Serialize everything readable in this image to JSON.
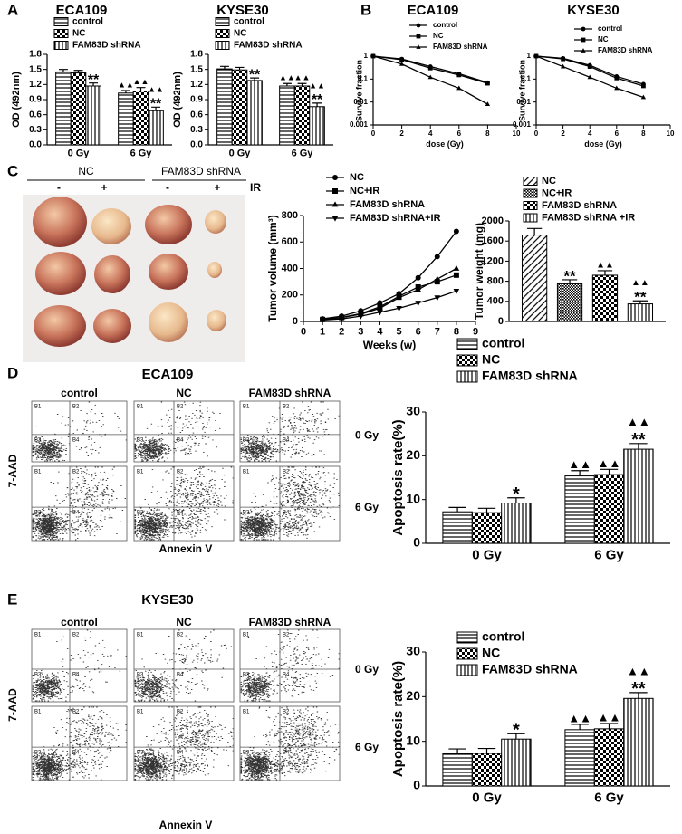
{
  "panel_labels": [
    "A",
    "B",
    "C",
    "D",
    "E"
  ],
  "tumor_photo": {
    "groups": [
      "NC",
      "FAM83D shRNA"
    ],
    "ir_signs": [
      "-",
      "+",
      "-",
      "+"
    ],
    "ir_label": "IR"
  },
  "flow_panels": [
    {
      "title": "ECA109",
      "columns": [
        "control",
        "NC",
        "FAM83D shRNA"
      ],
      "rows": [
        "0 Gy",
        "6 Gy"
      ],
      "y_label": "7-AAD",
      "x_label": "Annexin V",
      "quadrants": [
        "B1",
        "B2",
        "B3",
        "B4"
      ]
    },
    {
      "title": "KYSE30",
      "columns": [
        "control",
        "NC",
        "FAM83D shRNA"
      ],
      "rows": [
        "0 Gy",
        "6 Gy"
      ],
      "y_label": "7-AAD",
      "x_label": "Annexin V",
      "quadrants": [
        "B1",
        "B2",
        "B3",
        "B4"
      ]
    }
  ],
  "chart_data": [
    {
      "type": "bar",
      "title": "ECA109",
      "ylabel": "OD (492nm)",
      "categories": [
        "0 Gy",
        "6 Gy"
      ],
      "ylim": [
        0,
        1.8
      ],
      "yticks": [
        {
          "value": 0,
          "label": "0.0"
        },
        0.3,
        0.6,
        0.9,
        1.2,
        1.5,
        1.8
      ],
      "series": [
        {
          "name": "control",
          "pattern": "horizontal",
          "values": [
            1.45,
            1.03
          ],
          "errors": [
            0.05,
            0.05
          ],
          "annotations": [
            [],
            [
              "▲▲"
            ]
          ]
        },
        {
          "name": "NC",
          "pattern": "checker",
          "values": [
            1.43,
            1.07
          ],
          "errors": [
            0.05,
            0.07
          ],
          "annotations": [
            [],
            [
              "▲▲"
            ]
          ]
        },
        {
          "name": "FAM83D shRNA",
          "pattern": "vertical",
          "values": [
            1.17,
            0.68
          ],
          "errors": [
            0.06,
            0.07
          ],
          "annotations": [
            [
              "**"
            ],
            [
              "▲▲",
              "**"
            ]
          ]
        }
      ]
    },
    {
      "type": "bar",
      "title": "KYSE30",
      "ylabel": "OD (492nm)",
      "categories": [
        "0 Gy",
        "6 Gy"
      ],
      "ylim": [
        0,
        1.8
      ],
      "yticks": [
        {
          "value": 0,
          "label": "0.0"
        },
        0.3,
        0.6,
        0.9,
        1.2,
        1.5,
        1.8
      ],
      "series": [
        {
          "name": "control",
          "pattern": "horizontal",
          "values": [
            1.51,
            1.17
          ],
          "errors": [
            0.05,
            0.05
          ],
          "annotations": [
            [],
            [
              "▲▲"
            ]
          ]
        },
        {
          "name": "NC",
          "pattern": "checker",
          "values": [
            1.49,
            1.17
          ],
          "errors": [
            0.05,
            0.05
          ],
          "annotations": [
            [],
            [
              "▲▲"
            ]
          ]
        },
        {
          "name": "FAM83D shRNA",
          "pattern": "vertical",
          "values": [
            1.28,
            0.76
          ],
          "errors": [
            0.05,
            0.07
          ],
          "annotations": [
            [
              "**"
            ],
            [
              "▲▲",
              "**"
            ]
          ]
        }
      ]
    },
    {
      "type": "line",
      "log_y": true,
      "color": "#000000",
      "title": "ECA109",
      "xlabel": "dose (Gy)",
      "ylabel": "Survive fraction",
      "x": [
        0,
        2,
        4,
        6,
        8
      ],
      "xlim": [
        0,
        10
      ],
      "xticks": [
        0,
        2,
        4,
        6,
        8,
        10
      ],
      "ylim": [
        0.001,
        1
      ],
      "yticks": [
        0.001,
        0.01,
        0.1,
        1
      ],
      "series": [
        {
          "name": "control",
          "marker": "circle",
          "values": [
            1,
            0.75,
            0.35,
            0.17,
            0.07
          ]
        },
        {
          "name": "NC",
          "marker": "square",
          "values": [
            1,
            0.7,
            0.3,
            0.15,
            0.065
          ]
        },
        {
          "name": "FAM83D shRNA",
          "marker": "triangle",
          "values": [
            1,
            0.45,
            0.12,
            0.04,
            0.008
          ]
        }
      ]
    },
    {
      "type": "line",
      "log_y": true,
      "color": "#000000",
      "title": "KYSE30",
      "xlabel": "dose (Gy)",
      "ylabel": "Survive fraction",
      "x": [
        0,
        2,
        4,
        6,
        8
      ],
      "xlim": [
        0,
        10
      ],
      "xticks": [
        0,
        2,
        4,
        6,
        8,
        10
      ],
      "ylim": [
        0.001,
        1
      ],
      "yticks": [
        0.001,
        0.01,
        0.1,
        1
      ],
      "series": [
        {
          "name": "control",
          "marker": "circle",
          "values": [
            1,
            0.8,
            0.4,
            0.13,
            0.06
          ]
        },
        {
          "name": "NC",
          "marker": "square",
          "values": [
            1,
            0.75,
            0.35,
            0.11,
            0.05
          ]
        },
        {
          "name": "FAM83D shRNA",
          "marker": "triangle",
          "values": [
            1,
            0.35,
            0.12,
            0.04,
            0.016
          ]
        }
      ]
    },
    {
      "type": "line",
      "color": "#000000",
      "xlabel": "Weeks (w)",
      "ylabel": "Tumor volume (mm³)",
      "x": [
        1,
        2,
        3,
        4,
        5,
        6,
        7,
        8
      ],
      "xlim": [
        0,
        9
      ],
      "xticks": [
        0,
        1,
        2,
        3,
        4,
        5,
        6,
        7,
        8,
        9
      ],
      "ylim": [
        0,
        800
      ],
      "yticks": [
        0,
        200,
        400,
        600,
        800
      ],
      "series": [
        {
          "name": "NC",
          "marker": "circle",
          "values": [
            20,
            40,
            80,
            140,
            210,
            330,
            490,
            680
          ]
        },
        {
          "name": "NC+IR",
          "marker": "square",
          "values": [
            15,
            30,
            60,
            110,
            190,
            260,
            300,
            350
          ]
        },
        {
          "name": "FAM83D shRNA",
          "marker": "triangle",
          "values": [
            15,
            30,
            55,
            100,
            180,
            240,
            320,
            400
          ]
        },
        {
          "name": "FAM83D shRNA+IR",
          "marker": "triangle-down",
          "values": [
            10,
            20,
            40,
            70,
            100,
            140,
            180,
            230
          ]
        }
      ]
    },
    {
      "type": "bar",
      "ylabel": "Tumor weight (mg)",
      "categories": [
        null
      ],
      "ylim": [
        0,
        2000
      ],
      "yticks": [
        0,
        400,
        800,
        1200,
        1600,
        2000
      ],
      "series": [
        {
          "name": "NC",
          "pattern": "diagonal",
          "values": [
            1720
          ],
          "errors": [
            130
          ],
          "annotations": [
            []
          ]
        },
        {
          "name": "NC+IR",
          "pattern": "dots",
          "values": [
            750
          ],
          "errors": [
            80
          ],
          "annotations": [
            [
              "**"
            ]
          ]
        },
        {
          "name": "FAM83D shRNA",
          "pattern": "checker",
          "values": [
            920
          ],
          "errors": [
            90
          ],
          "annotations": [
            [
              "▲▲"
            ]
          ]
        },
        {
          "name": "FAM83D shRNA +IR",
          "pattern": "vertical",
          "values": [
            350
          ],
          "errors": [
            60
          ],
          "annotations": [
            [
              "▲▲",
              "**"
            ]
          ]
        }
      ]
    },
    {
      "type": "bar",
      "ylabel": "Apoptosis rate(%)",
      "categories": [
        "0 Gy",
        "6 Gy"
      ],
      "ylim": [
        0,
        30
      ],
      "yticks": [
        0,
        10,
        20,
        30
      ],
      "series": [
        {
          "name": "control",
          "pattern": "horizontal",
          "values": [
            7.2,
            15.4
          ],
          "errors": [
            1,
            1.2
          ],
          "annotations": [
            [],
            [
              "▲▲"
            ]
          ]
        },
        {
          "name": "NC",
          "pattern": "checker",
          "values": [
            7,
            15.7
          ],
          "errors": [
            1,
            1.2
          ],
          "annotations": [
            [],
            [
              "▲▲"
            ]
          ]
        },
        {
          "name": "FAM83D shRNA",
          "pattern": "vertical",
          "values": [
            9.2,
            21.5
          ],
          "errors": [
            1.2,
            1.3
          ],
          "annotations": [
            [
              "*"
            ],
            [
              "▲▲",
              "**"
            ]
          ]
        }
      ]
    },
    {
      "type": "bar",
      "ylabel": "Apoptosis rate(%)",
      "categories": [
        "0 Gy",
        "6 Gy"
      ],
      "ylim": [
        0,
        30
      ],
      "yticks": [
        0,
        10,
        20,
        30
      ],
      "series": [
        {
          "name": "control",
          "pattern": "horizontal",
          "values": [
            7.3,
            12.6
          ],
          "errors": [
            1,
            1.2
          ],
          "annotations": [
            [],
            [
              "▲▲"
            ]
          ]
        },
        {
          "name": "NC",
          "pattern": "checker",
          "values": [
            7.3,
            12.8
          ],
          "errors": [
            1.1,
            1.2
          ],
          "annotations": [
            [],
            [
              "▲▲"
            ]
          ]
        },
        {
          "name": "FAM83D shRNA",
          "pattern": "vertical",
          "values": [
            10.5,
            19.6
          ],
          "errors": [
            1.2,
            1.3
          ],
          "annotations": [
            [
              "*"
            ],
            [
              "▲▲",
              "**"
            ]
          ]
        }
      ]
    }
  ]
}
